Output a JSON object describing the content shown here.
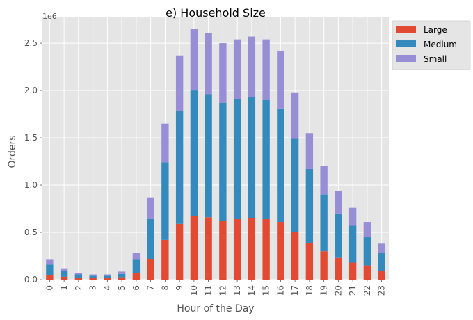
{
  "chart_data": {
    "type": "bar",
    "stacked": true,
    "title": "e) Household Size",
    "xlabel": "Hour of the Day",
    "ylabel": "Orders",
    "offset_text": "1e6",
    "ylim": [
      0,
      2.78
    ],
    "yticks": [
      0.0,
      0.5,
      1.0,
      1.5,
      2.0,
      2.5
    ],
    "ytick_labels": [
      "0.0",
      "0.5",
      "1.0",
      "1.5",
      "2.0",
      "2.5"
    ],
    "grid": true,
    "legend_position": "outside top-right",
    "categories": [
      "0",
      "1",
      "2",
      "3",
      "4",
      "5",
      "6",
      "7",
      "8",
      "9",
      "10",
      "11",
      "12",
      "13",
      "14",
      "15",
      "16",
      "17",
      "18",
      "19",
      "20",
      "21",
      "22",
      "23"
    ],
    "series": [
      {
        "name": "Large",
        "color": "#E24A33",
        "values": [
          0.05,
          0.03,
          0.02,
          0.015,
          0.015,
          0.025,
          0.07,
          0.22,
          0.42,
          0.59,
          0.67,
          0.66,
          0.62,
          0.64,
          0.65,
          0.64,
          0.61,
          0.5,
          0.39,
          0.3,
          0.23,
          0.18,
          0.15,
          0.09
        ]
      },
      {
        "name": "Medium",
        "color": "#348ABD",
        "values": [
          0.11,
          0.06,
          0.035,
          0.025,
          0.025,
          0.035,
          0.14,
          0.42,
          0.82,
          1.19,
          1.33,
          1.3,
          1.25,
          1.27,
          1.28,
          1.26,
          1.2,
          0.99,
          0.78,
          0.6,
          0.47,
          0.39,
          0.3,
          0.19
        ]
      },
      {
        "name": "Small",
        "color": "#988ED5",
        "values": [
          0.05,
          0.03,
          0.015,
          0.015,
          0.015,
          0.025,
          0.07,
          0.23,
          0.41,
          0.59,
          0.65,
          0.65,
          0.63,
          0.63,
          0.64,
          0.64,
          0.61,
          0.49,
          0.38,
          0.3,
          0.24,
          0.19,
          0.16,
          0.1
        ]
      }
    ]
  }
}
